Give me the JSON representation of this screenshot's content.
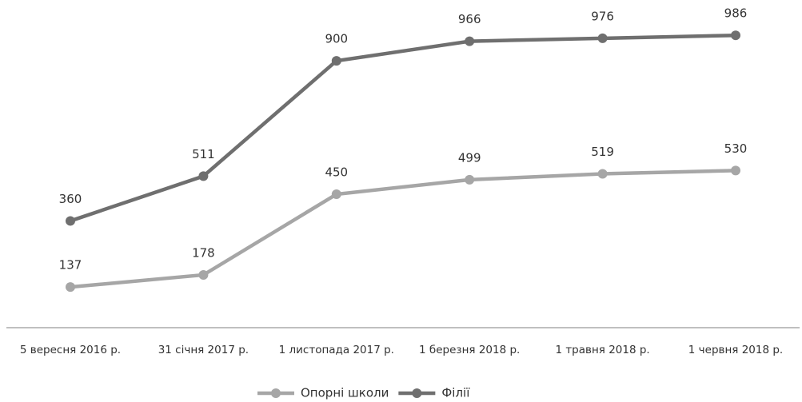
{
  "chart_data": {
    "type": "line",
    "categories": [
      "5 вересня 2016 р.",
      "31 січня 2017 р.",
      "1 листопада 2017 р.",
      "1 березня 2018 р.",
      "1 травня 2018 р.",
      "1 червня 2018 р."
    ],
    "series": [
      {
        "name": "Опорні школи",
        "color": "#a6a6a6",
        "values": [
          137,
          178,
          450,
          499,
          519,
          530
        ]
      },
      {
        "name": "Філії",
        "color": "#6f6f6f",
        "values": [
          360,
          511,
          900,
          966,
          976,
          986
        ]
      }
    ]
  }
}
